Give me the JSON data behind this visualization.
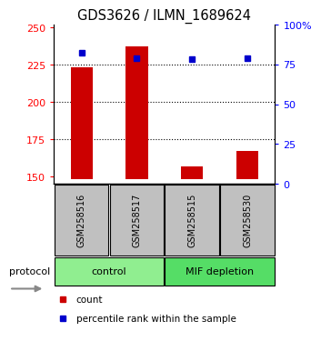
{
  "title": "GDS3626 / ILMN_1689624",
  "samples": [
    "GSM258516",
    "GSM258517",
    "GSM258515",
    "GSM258530"
  ],
  "counts": [
    223,
    237,
    157,
    167
  ],
  "percentile_ranks": [
    82,
    79,
    78,
    79
  ],
  "ylim_left": [
    145,
    252
  ],
  "ylim_right": [
    0,
    100
  ],
  "left_ticks": [
    150,
    175,
    200,
    225,
    250
  ],
  "right_ticks": [
    0,
    25,
    50,
    75,
    100
  ],
  "left_tick_labels": [
    "150",
    "175",
    "200",
    "225",
    "250"
  ],
  "right_tick_labels": [
    "0",
    "25",
    "50",
    "75",
    "100%"
  ],
  "bar_color": "#CC0000",
  "dot_color": "#0000CC",
  "bar_bottom": 148,
  "grid_lines": [
    175,
    200,
    225
  ],
  "sample_box_color": "#C0C0C0",
  "group_ranges": [
    [
      0,
      1,
      "control",
      "#90EE90"
    ],
    [
      2,
      3,
      "MIF depletion",
      "#55DD66"
    ]
  ],
  "legend_items": [
    {
      "color": "#CC0000",
      "label": "count"
    },
    {
      "color": "#0000CC",
      "label": "percentile rank within the sample"
    }
  ]
}
